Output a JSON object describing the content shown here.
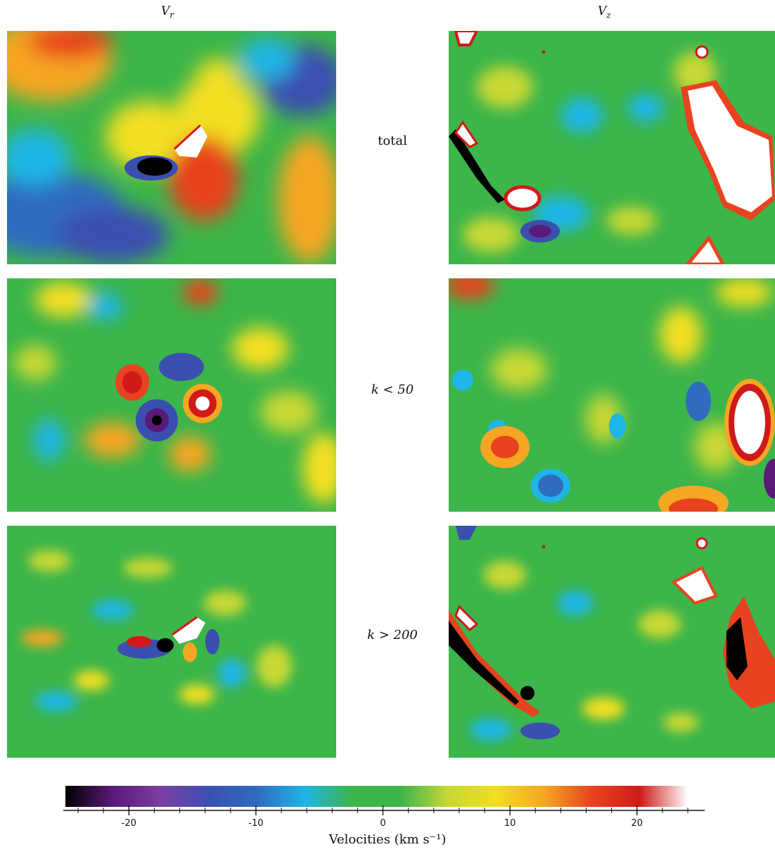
{
  "columns": {
    "left": "V",
    "left_sub": "r",
    "right": "V",
    "right_sub": "z"
  },
  "rows": [
    "total",
    "k < 50",
    "k > 200"
  ],
  "chart_data": {
    "type": "heatmap",
    "title": "",
    "panels": [
      {
        "row": "total",
        "component": "Vr"
      },
      {
        "row": "total",
        "component": "Vz"
      },
      {
        "row": "k < 50",
        "component": "Vr"
      },
      {
        "row": "k < 50",
        "component": "Vz"
      },
      {
        "row": "k > 200",
        "component": "Vr"
      },
      {
        "row": "k > 200",
        "component": "Vz"
      }
    ],
    "colorbar": {
      "label": "Velocities (km s⁻¹)",
      "range": [
        -25,
        24
      ],
      "ticks": [
        -20,
        -10,
        0,
        10,
        20
      ],
      "tick_labels": [
        "-20",
        "-10",
        "0",
        "10",
        "20"
      ],
      "colors": [
        "#000000",
        "#5a1a7a",
        "#7a3fa0",
        "#3a4fb0",
        "#2f6cc0",
        "#1fb5e6",
        "#3cb54a",
        "#3cb54a",
        "#c8d836",
        "#f2df20",
        "#f5a623",
        "#e8431f",
        "#d01a1a",
        "#ffffff"
      ]
    }
  }
}
